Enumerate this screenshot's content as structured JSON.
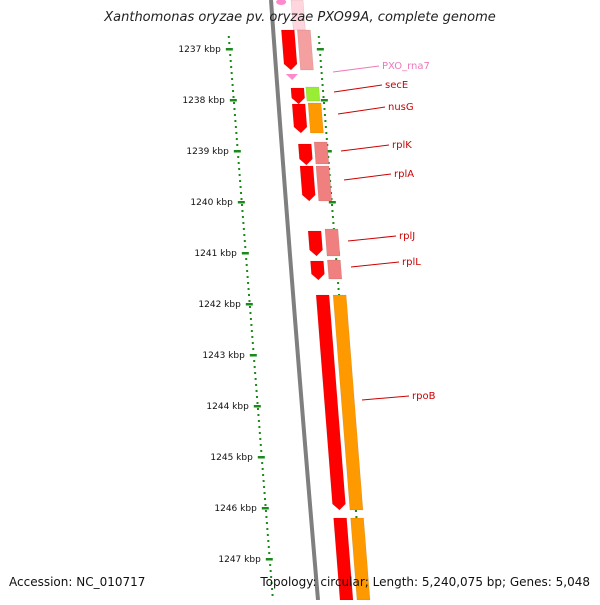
{
  "title": "Xanthomonas oryzae pv. oryzae PXO99A, complete genome",
  "accession": "Accession: NC_010717",
  "topology": "Topology: circular; Length: 5,240,075 bp; Genes: 5,048",
  "colors": {
    "backbone": "#7f7f7f",
    "ruler": "#1a8a1a",
    "gene_red": "#ff0000",
    "gene_pink": "#f08080",
    "gene_orange": "#ff9900",
    "gene_green": "#99ee33",
    "rna_pink": "#ff88cc",
    "label_red": "#cc0000",
    "label_pink": "#ee77bb"
  },
  "ruler_labels": [
    "1237 kbp",
    "1238 kbp",
    "1239 kbp",
    "1240 kbp",
    "1241 kbp",
    "1242 kbp",
    "1243 kbp",
    "1244 kbp",
    "1245 kbp",
    "1246 kbp",
    "1247 kbp"
  ],
  "gene_labels": [
    {
      "name": "PXO_rna7",
      "kind": "rna"
    },
    {
      "name": "secE",
      "kind": "gene"
    },
    {
      "name": "nusG",
      "kind": "gene"
    },
    {
      "name": "rplK",
      "kind": "gene"
    },
    {
      "name": "rplA",
      "kind": "gene"
    },
    {
      "name": "rplJ",
      "kind": "gene"
    },
    {
      "name": "rplL",
      "kind": "gene"
    },
    {
      "name": "rpoB",
      "kind": "gene"
    }
  ]
}
